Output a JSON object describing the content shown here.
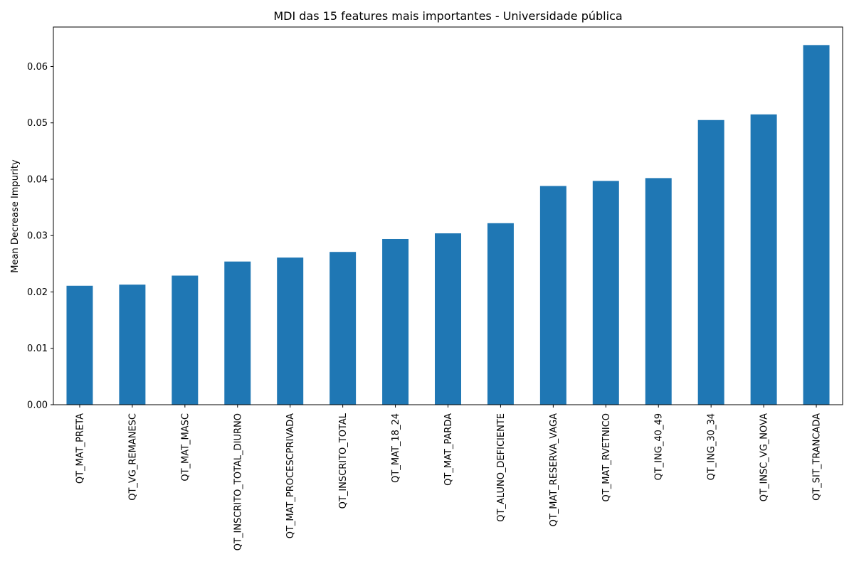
{
  "chart_data": {
    "type": "bar",
    "title": "MDI das 15 features mais importantes - Universidade pública",
    "xlabel": "",
    "ylabel": "Mean Decrease Impurity",
    "categories": [
      "QT_MAT_PRETA",
      "QT_VG_REMANESC",
      "QT_MAT_MASC",
      "QT_INSCRITO_TOTAL_DIURNO",
      "QT_MAT_PROCESCPRIVADA",
      "QT_INSCRITO_TOTAL",
      "QT_MAT_18_24",
      "QT_MAT_PARDA",
      "QT_ALUNO_DEFICIENTE",
      "QT_MAT_RESERVA_VAGA",
      "QT_MAT_RVETNICO",
      "QT_ING_40_49",
      "QT_ING_30_34",
      "QT_INSC_VG_NOVA",
      "QT_SIT_TRANCADA"
    ],
    "values": [
      0.0211,
      0.0213,
      0.0229,
      0.0254,
      0.0261,
      0.0271,
      0.0294,
      0.0304,
      0.0322,
      0.0388,
      0.0397,
      0.0402,
      0.0505,
      0.0515,
      0.0638
    ],
    "ylim": [
      0,
      0.067
    ],
    "yticks": [
      "0.00",
      "0.01",
      "0.02",
      "0.03",
      "0.04",
      "0.05",
      "0.06"
    ],
    "bar_color": "#1f77b4",
    "grid": false,
    "legend": "none"
  }
}
